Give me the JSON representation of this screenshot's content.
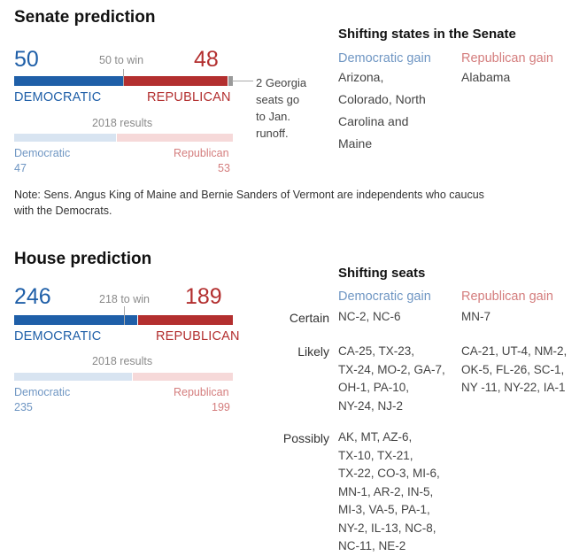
{
  "senate": {
    "title": "Senate prediction",
    "dem_count": "50",
    "rep_count": "48",
    "to_win": "50 to win",
    "dem_label": "DEMOCRATIC",
    "rep_label": "REPUBLICAN",
    "georgia_note": [
      "2 Georgia",
      "seats go",
      "to Jan.",
      "runoff."
    ],
    "results_label": "2018 results",
    "res_dem_label": "Democratic",
    "res_rep_label": "Republican",
    "res_dem_value": "47",
    "res_rep_value": "53",
    "note": [
      "Note: Sens. Angus King of Maine and Bernie Sanders of Vermont are independents who caucus",
      "with the Democrats."
    ]
  },
  "senate_shift": {
    "title": "Shifting states in the Senate",
    "dem_gain_label": "Democratic gain",
    "rep_gain_label": "Republican gain",
    "dem_gain_lines": [
      "Arizona,",
      "Colorado, North",
      "Carolina and",
      "Maine"
    ],
    "rep_gain_lines": [
      "Alabama"
    ]
  },
  "house": {
    "title": "House prediction",
    "dem_count": "246",
    "rep_count": "189",
    "to_win": "218 to win",
    "dem_label": "DEMOCRATIC",
    "rep_label": "REPUBLICAN",
    "results_label": "2018 results",
    "res_dem_label": "Democratic",
    "res_rep_label": "Republican",
    "res_dem_value": "235",
    "res_rep_value": "199"
  },
  "house_shift": {
    "title": "Shifting seats",
    "dem_gain_label": "Democratic gain",
    "rep_gain_label": "Republican gain",
    "rows": {
      "certain": {
        "label": "Certain",
        "dem": [
          "NC-2, NC-6"
        ],
        "rep": [
          "MN-7"
        ]
      },
      "likely": {
        "label": "Likely",
        "dem": [
          "CA-25, TX-23,",
          "TX-24, MO-2, GA-7,",
          "OH-1, PA-10,",
          "NY-24, NJ-2"
        ],
        "rep": [
          "CA-21, UT-4, NM-2,",
          "OK-5, FL-26, SC-1,",
          "NY -11, NY-22, IA-1"
        ]
      },
      "possibly": {
        "label": "Possibly",
        "dem": [
          "AK, MT, AZ-6,",
          "TX-10, TX-21,",
          "TX-22, CO-3, MI-6,",
          "MN-1, AR-2, IN-5,",
          "MI-3, VA-5, PA-1,",
          "NY-2, IL-13, NC-8,",
          "NC-11, NE-2"
        ]
      }
    }
  },
  "colors": {
    "dem": "#1f5fa8",
    "rep": "#b32f2f",
    "dem_light": "#d8e4f1",
    "rep_light": "#f6d9d9"
  },
  "chart_data": [
    {
      "type": "bar",
      "title": "Senate prediction",
      "categories": [
        "DEMOCRATIC",
        "REPUBLICAN",
        "Undecided (Georgia runoff)"
      ],
      "values": [
        50,
        48,
        2
      ],
      "threshold": 50,
      "threshold_label": "50 to win",
      "total": 100,
      "baseline_2018": {
        "Democratic": 47,
        "Republican": 53
      }
    },
    {
      "type": "bar",
      "title": "House prediction",
      "categories": [
        "DEMOCRATIC",
        "REPUBLICAN"
      ],
      "values": [
        246,
        189
      ],
      "threshold": 218,
      "threshold_label": "218 to win",
      "total": 435,
      "baseline_2018": {
        "Democratic": 235,
        "Republican": 199
      }
    }
  ]
}
